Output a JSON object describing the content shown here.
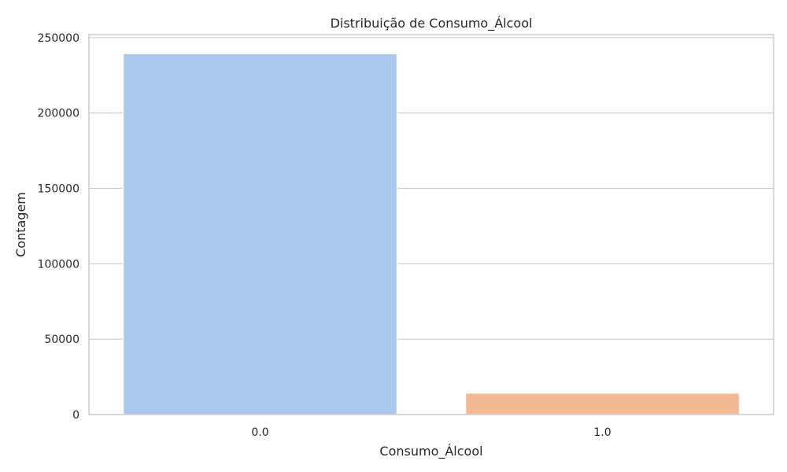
{
  "chart_data": {
    "type": "bar",
    "title": "Distribuição de Consumo_Álcool",
    "xlabel": "Consumo_Álcool",
    "ylabel": "Contagem",
    "categories": [
      "0.0",
      "1.0"
    ],
    "values": [
      239424,
      14253
    ],
    "colors": [
      "#abc9ee",
      "#f2b993"
    ],
    "ylim": [
      0,
      252000
    ],
    "yticks": [
      0,
      50000,
      100000,
      150000,
      200000,
      250000
    ],
    "ytick_labels": [
      "0",
      "50000",
      "100000",
      "150000",
      "200000",
      "250000"
    ],
    "grid": "horizontal",
    "legend": "none"
  }
}
